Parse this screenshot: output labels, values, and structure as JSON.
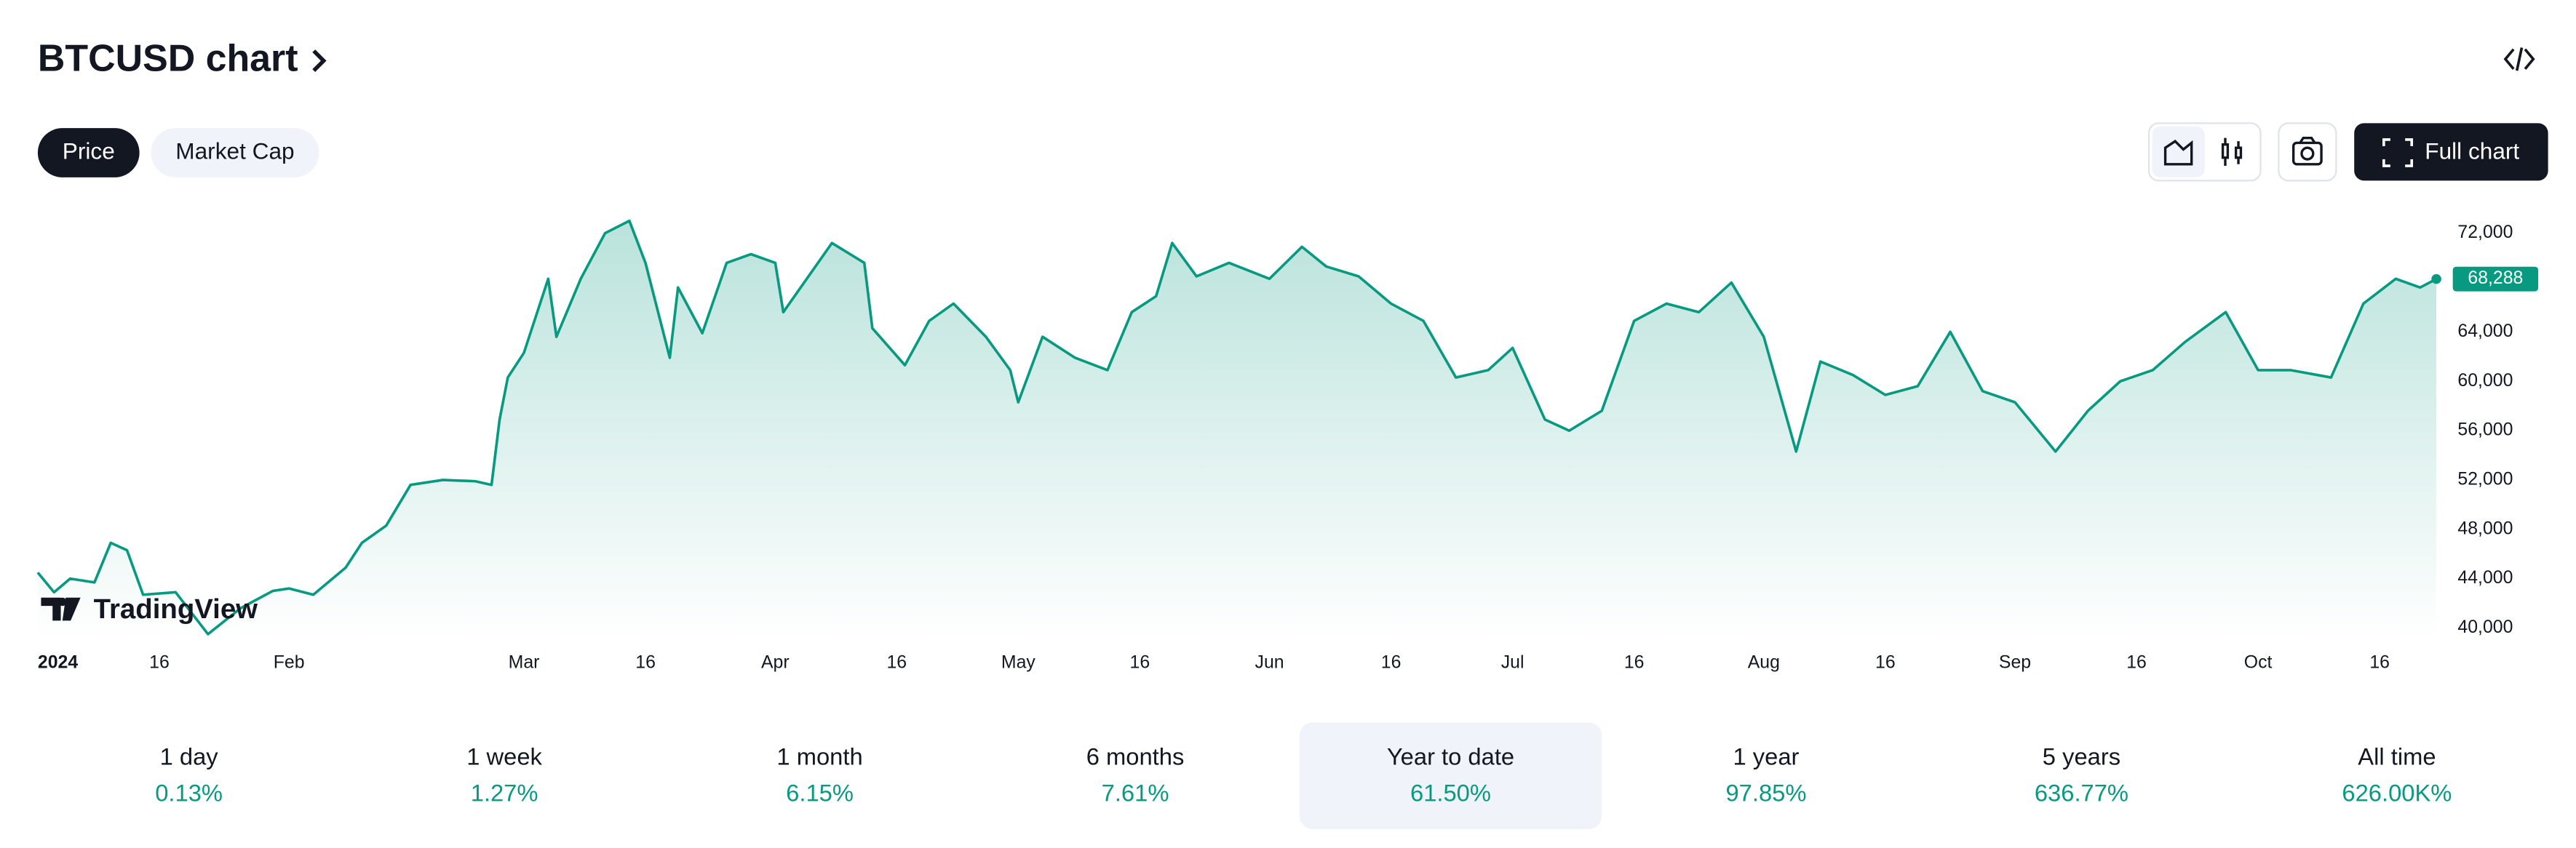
{
  "header": {
    "title": "BTCUSD chart"
  },
  "tabs": [
    {
      "label": "Price",
      "active": true
    },
    {
      "label": "Market Cap",
      "active": false
    }
  ],
  "full_chart_button": "Full chart",
  "watermark": "TradingView",
  "chart_data": {
    "type": "line",
    "x": [
      "2024-01-01",
      "2024-01-03",
      "2024-01-05",
      "2024-01-08",
      "2024-01-10",
      "2024-01-12",
      "2024-01-14",
      "2024-01-18",
      "2024-01-22",
      "2024-01-26",
      "2024-01-30",
      "2024-02-01",
      "2024-02-04",
      "2024-02-08",
      "2024-02-10",
      "2024-02-13",
      "2024-02-16",
      "2024-02-20",
      "2024-02-24",
      "2024-02-26",
      "2024-02-27",
      "2024-02-28",
      "2024-03-01",
      "2024-03-04",
      "2024-03-05",
      "2024-03-08",
      "2024-03-11",
      "2024-03-14",
      "2024-03-16",
      "2024-03-19",
      "2024-03-20",
      "2024-03-23",
      "2024-03-26",
      "2024-03-29",
      "2024-04-01",
      "2024-04-02",
      "2024-04-08",
      "2024-04-12",
      "2024-04-13",
      "2024-04-17",
      "2024-04-20",
      "2024-04-23",
      "2024-04-27",
      "2024-04-30",
      "2024-05-01",
      "2024-05-04",
      "2024-05-08",
      "2024-05-12",
      "2024-05-15",
      "2024-05-18",
      "2024-05-20",
      "2024-05-23",
      "2024-05-27",
      "2024-06-01",
      "2024-06-05",
      "2024-06-08",
      "2024-06-12",
      "2024-06-16",
      "2024-06-20",
      "2024-06-24",
      "2024-06-28",
      "2024-07-01",
      "2024-07-05",
      "2024-07-08",
      "2024-07-12",
      "2024-07-16",
      "2024-07-20",
      "2024-07-24",
      "2024-07-28",
      "2024-08-01",
      "2024-08-05",
      "2024-08-08",
      "2024-08-12",
      "2024-08-16",
      "2024-08-20",
      "2024-08-24",
      "2024-08-28",
      "2024-09-01",
      "2024-09-06",
      "2024-09-10",
      "2024-09-14",
      "2024-09-18",
      "2024-09-22",
      "2024-09-27",
      "2024-10-01",
      "2024-10-05",
      "2024-10-10",
      "2024-10-14",
      "2024-10-18",
      "2024-10-21",
      "2024-10-23"
    ],
    "series": [
      {
        "name": "BTCUSD",
        "color": "#089981",
        "values": [
          44500,
          42900,
          44000,
          43700,
          46900,
          46300,
          42700,
          42900,
          39500,
          41600,
          43000,
          43200,
          42700,
          44900,
          46900,
          48300,
          51600,
          52000,
          51900,
          51600,
          56900,
          60300,
          62300,
          68300,
          63600,
          68300,
          72000,
          73000,
          69600,
          61900,
          67600,
          63900,
          69600,
          70300,
          69600,
          65600,
          71200,
          69600,
          64300,
          61300,
          64900,
          66300,
          63600,
          60900,
          58300,
          63600,
          61900,
          60900,
          65600,
          66900,
          71200,
          68500,
          69600,
          68300,
          70900,
          69300,
          68500,
          66300,
          64900,
          60300,
          60900,
          62700,
          56900,
          56000,
          57600,
          64900,
          66300,
          65600,
          68000,
          63600,
          54300,
          61600,
          60500,
          58900,
          59600,
          64000,
          59200,
          58300,
          54300,
          57600,
          60000,
          60900,
          63200,
          65600,
          60900,
          60900,
          60300,
          66300,
          68300,
          67600,
          68288
        ],
        "value_labels": [
          null,
          null,
          null,
          null,
          null,
          null,
          null,
          null,
          null,
          null,
          null,
          null,
          null,
          null,
          null,
          null,
          null,
          null,
          null,
          null,
          null,
          null,
          null,
          null,
          null,
          null,
          null,
          null,
          null,
          null,
          null,
          null,
          null,
          null,
          null,
          null,
          null,
          null,
          null,
          null,
          null,
          null,
          null,
          null,
          null,
          null,
          null,
          null,
          null,
          null,
          null,
          null,
          null,
          null,
          null,
          null,
          null,
          null,
          null,
          null,
          null,
          null,
          null,
          null,
          null,
          null,
          null,
          null,
          null,
          null,
          null,
          null,
          null,
          null,
          null,
          null,
          null,
          null,
          null,
          null,
          null,
          null,
          null,
          null,
          null,
          null,
          null,
          null,
          null,
          null,
          "68,288"
        ]
      }
    ],
    "xlim": [
      "2024-01-01",
      "2024-10-23"
    ],
    "xticks": [
      {
        "value": "2024-01-01",
        "label": "2024"
      },
      {
        "value": "2024-01-16",
        "label": "16"
      },
      {
        "value": "2024-02-01",
        "label": "Feb"
      },
      {
        "value": "2024-03-01",
        "label": "Mar"
      },
      {
        "value": "2024-03-16",
        "label": "16"
      },
      {
        "value": "2024-04-01",
        "label": "Apr"
      },
      {
        "value": "2024-04-16",
        "label": "16"
      },
      {
        "value": "2024-05-01",
        "label": "May"
      },
      {
        "value": "2024-05-16",
        "label": "16"
      },
      {
        "value": "2024-06-01",
        "label": "Jun"
      },
      {
        "value": "2024-06-16",
        "label": "16"
      },
      {
        "value": "2024-07-01",
        "label": "Jul"
      },
      {
        "value": "2024-07-16",
        "label": "16"
      },
      {
        "value": "2024-08-01",
        "label": "Aug"
      },
      {
        "value": "2024-08-16",
        "label": "16"
      },
      {
        "value": "2024-09-01",
        "label": "Sep"
      },
      {
        "value": "2024-09-16",
        "label": "16"
      },
      {
        "value": "2024-10-01",
        "label": "Oct"
      },
      {
        "value": "2024-10-16",
        "label": "16"
      }
    ],
    "ylim": [
      39000,
      74000
    ],
    "yticks": [
      {
        "value": 40000,
        "label": "40,000"
      },
      {
        "value": 44000,
        "label": "44,000"
      },
      {
        "value": 48000,
        "label": "48,000"
      },
      {
        "value": 52000,
        "label": "52,000"
      },
      {
        "value": 56000,
        "label": "56,000"
      },
      {
        "value": 60000,
        "label": "60,000"
      },
      {
        "value": 64000,
        "label": "64,000"
      },
      {
        "value": 68000,
        "label": "68,000"
      },
      {
        "value": 72000,
        "label": "72,000"
      }
    ],
    "grid": false
  },
  "periods": [
    {
      "label": "1 day",
      "change": "0.13%"
    },
    {
      "label": "1 week",
      "change": "1.27%"
    },
    {
      "label": "1 month",
      "change": "6.15%"
    },
    {
      "label": "6 months",
      "change": "7.61%"
    },
    {
      "label": "Year to date",
      "change": "61.50%",
      "selected": true
    },
    {
      "label": "1 year",
      "change": "97.85%"
    },
    {
      "label": "5 years",
      "change": "636.77%"
    },
    {
      "label": "All time",
      "change": "626.00K%"
    }
  ]
}
